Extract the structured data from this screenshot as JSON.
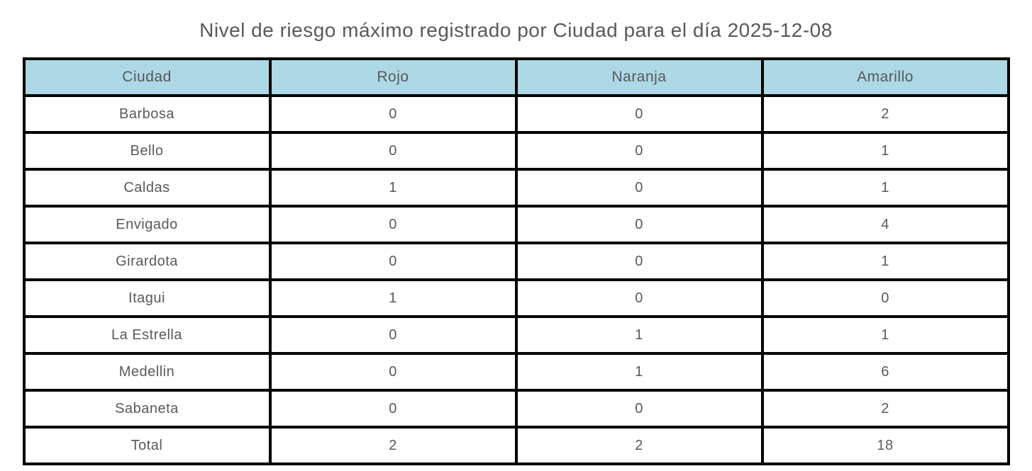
{
  "page": {
    "title": "Nivel de riesgo máximo registrado por Ciudad para el día 2025-12-08"
  },
  "colors": {
    "header_bg": "#ADD8E6",
    "risk_red": "#FF0000",
    "risk_orange": "#FFA500",
    "risk_yellow": "#FFFF00",
    "text": "#595959",
    "border": "#000000",
    "background": "#FFFFFF"
  },
  "chart_data": {
    "type": "table",
    "title": "Nivel de riesgo máximo registrado por Ciudad para el día 2025-12-08",
    "columns": [
      "Ciudad",
      "Rojo",
      "Naranja",
      "Amarillo"
    ],
    "rows": [
      {
        "cells": [
          "Barbosa",
          "0",
          "0",
          "2"
        ],
        "cell_highlights": [
          null,
          null,
          null,
          "yellow"
        ]
      },
      {
        "cells": [
          "Bello",
          "0",
          "0",
          "1"
        ],
        "cell_highlights": [
          null,
          null,
          null,
          "yellow"
        ]
      },
      {
        "cells": [
          "Caldas",
          "1",
          "0",
          "1"
        ],
        "cell_highlights": [
          null,
          "red",
          null,
          "yellow"
        ]
      },
      {
        "cells": [
          "Envigado",
          "0",
          "0",
          "4"
        ],
        "cell_highlights": [
          null,
          null,
          null,
          "yellow"
        ]
      },
      {
        "cells": [
          "Girardota",
          "0",
          "0",
          "1"
        ],
        "cell_highlights": [
          null,
          null,
          null,
          "yellow"
        ]
      },
      {
        "cells": [
          "Itagui",
          "1",
          "0",
          "0"
        ],
        "cell_highlights": [
          null,
          "red",
          null,
          null
        ]
      },
      {
        "cells": [
          "La Estrella",
          "0",
          "1",
          "1"
        ],
        "cell_highlights": [
          null,
          null,
          "orange",
          "yellow"
        ]
      },
      {
        "cells": [
          "Medellin",
          "0",
          "1",
          "6"
        ],
        "cell_highlights": [
          null,
          null,
          "orange",
          "yellow"
        ]
      },
      {
        "cells": [
          "Sabaneta",
          "0",
          "0",
          "2"
        ],
        "cell_highlights": [
          null,
          null,
          null,
          "yellow"
        ]
      },
      {
        "cells": [
          "Total",
          "2",
          "2",
          "18"
        ],
        "cell_highlights": [
          null,
          null,
          null,
          null
        ]
      }
    ]
  }
}
